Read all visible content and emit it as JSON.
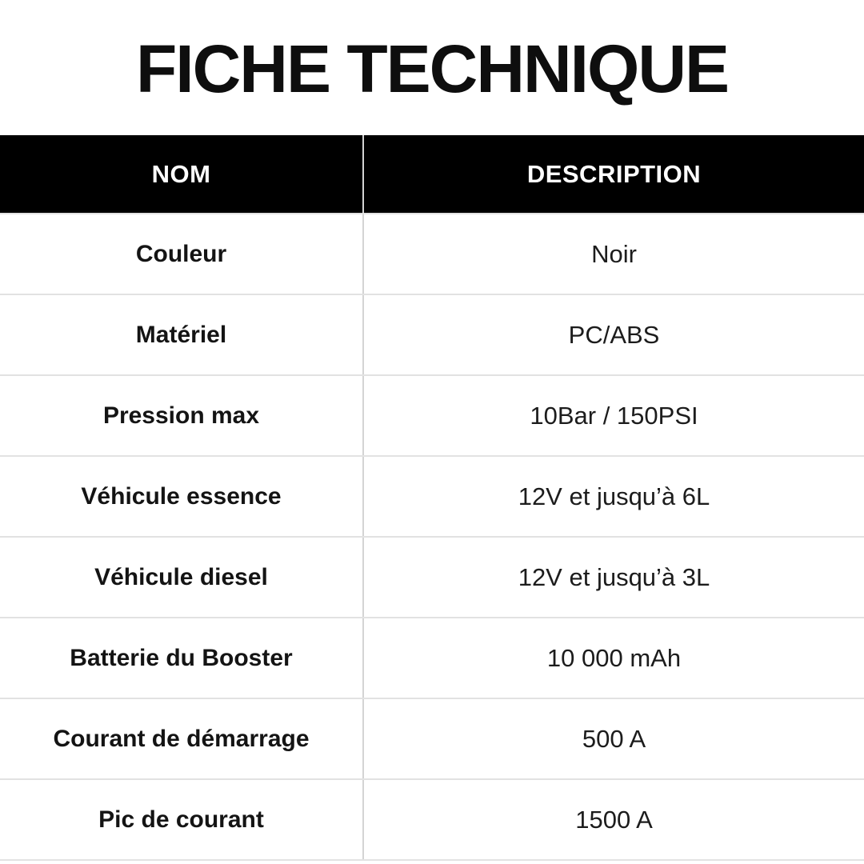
{
  "page": {
    "title": "FICHE TECHNIQUE"
  },
  "colors": {
    "header_bg": "#000000",
    "header_text": "#ffffff",
    "row_border": "#e2e2e2",
    "column_border": "#d4d4d4",
    "body_bg": "#ffffff"
  },
  "table": {
    "header": {
      "name_label": "NOM",
      "description_label": "DESCRIPTION"
    },
    "rows": [
      {
        "name": "Couleur",
        "description": "Noir"
      },
      {
        "name": "Matériel",
        "description": "PC/ABS"
      },
      {
        "name": "Pression max",
        "description": "10Bar / 150PSI"
      },
      {
        "name": "Véhicule essence",
        "description": "12V et jusqu’à 6L"
      },
      {
        "name": "Véhicule diesel",
        "description": "12V et jusqu’à 3L"
      },
      {
        "name": "Batterie du Booster",
        "description": "10 000 mAh"
      },
      {
        "name": "Courant de démarrage",
        "description": "500 A"
      },
      {
        "name": "Pic de courant",
        "description": "1500 A"
      }
    ]
  }
}
